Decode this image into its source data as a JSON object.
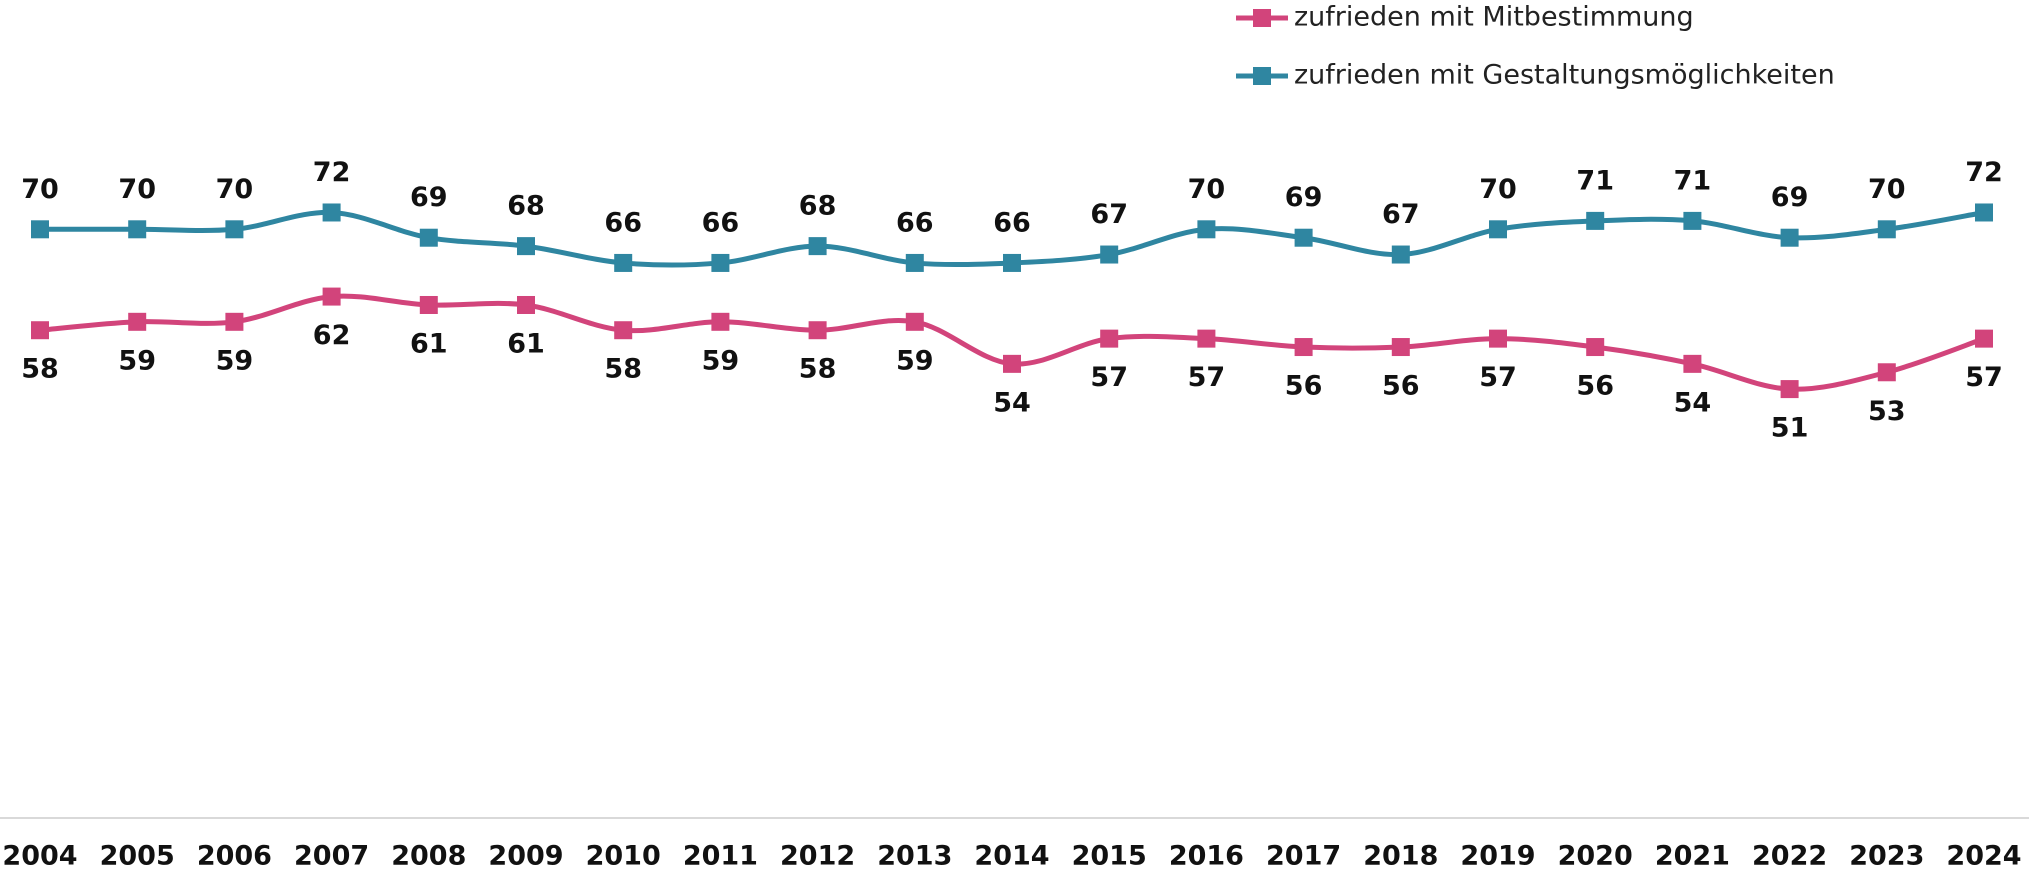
{
  "chart_data": {
    "type": "line",
    "categories": [
      "2004",
      "2005",
      "2006",
      "2007",
      "2008",
      "2009",
      "2010",
      "2011",
      "2012",
      "2013",
      "2014",
      "2015",
      "2016",
      "2017",
      "2018",
      "2019",
      "2020",
      "2021",
      "2022",
      "2023",
      "2024"
    ],
    "series": [
      {
        "name": "zufrieden mit Mitbestimmung",
        "color": "#d2447b",
        "values": [
          58,
          59,
          59,
          62,
          61,
          61,
          58,
          59,
          58,
          59,
          54,
          57,
          57,
          56,
          56,
          57,
          56,
          54,
          51,
          53,
          57
        ]
      },
      {
        "name": "zufrieden mit Gestaltungsmöglichkeiten",
        "color": "#2f86a1",
        "values": [
          70,
          70,
          70,
          72,
          69,
          68,
          66,
          66,
          68,
          66,
          66,
          67,
          70,
          69,
          67,
          70,
          71,
          71,
          69,
          70,
          72
        ]
      }
    ],
    "ylim": [
      0,
      100
    ]
  }
}
